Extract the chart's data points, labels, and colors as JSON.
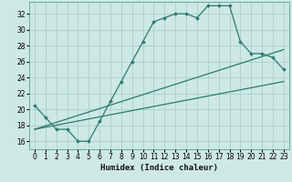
{
  "xlabel": "Humidex (Indice chaleur)",
  "bg_color": "#cde8e5",
  "line_color": "#2d7a6e",
  "grid_color": "#aacfcc",
  "xlim": [
    -0.5,
    23.5
  ],
  "ylim": [
    15.0,
    33.5
  ],
  "xticks": [
    0,
    1,
    2,
    3,
    4,
    5,
    6,
    7,
    8,
    9,
    10,
    11,
    12,
    13,
    14,
    15,
    16,
    17,
    18,
    19,
    20,
    21,
    22,
    23
  ],
  "yticks": [
    16,
    18,
    20,
    22,
    24,
    26,
    28,
    30,
    32
  ],
  "curve1_x": [
    0,
    1,
    2,
    3,
    4,
    5,
    6,
    7,
    8,
    9,
    10,
    11,
    12,
    13,
    14,
    15,
    16,
    17,
    18,
    19,
    20,
    21,
    22,
    23
  ],
  "curve1_y": [
    20.5,
    19.0,
    17.5,
    17.5,
    16.0,
    16.0,
    18.5,
    21.0,
    23.5,
    26.0,
    28.5,
    31.0,
    31.5,
    32.0,
    32.0,
    31.5,
    33.0,
    33.0,
    33.0,
    28.5,
    27.0,
    27.0,
    26.5,
    25.0
  ],
  "curve2_x": [
    0,
    23
  ],
  "curve2_y": [
    17.5,
    27.5
  ],
  "curve3_x": [
    0,
    23
  ],
  "curve3_y": [
    17.5,
    23.5
  ],
  "xlabel_fontsize": 6.5,
  "tick_fontsize": 5.5
}
